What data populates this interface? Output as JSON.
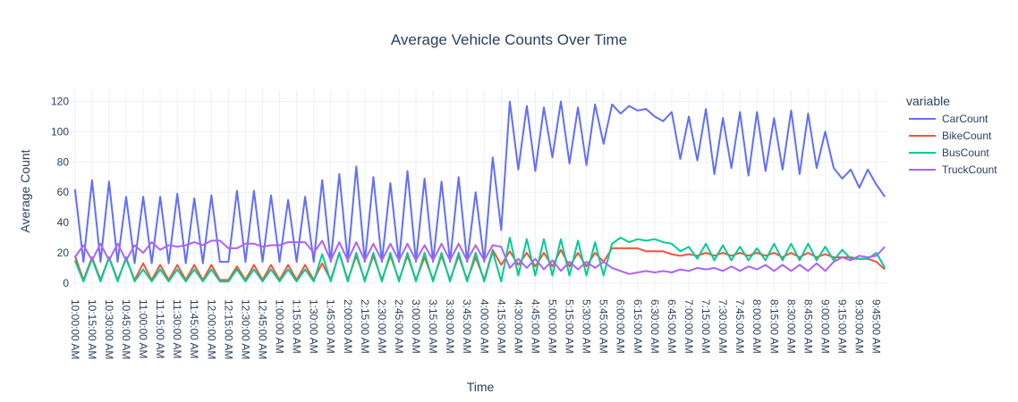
{
  "chart_data": {
    "type": "line",
    "title": "Average Vehicle Counts Over Time",
    "xlabel": "Time",
    "ylabel": "Average Count",
    "ylim": [
      -6,
      128
    ],
    "yticks": [
      0,
      20,
      40,
      60,
      80,
      100,
      120
    ],
    "grid": true,
    "legend_title": "variable",
    "legend_position": "right",
    "xtick_labels": [
      "10:00:00 AM",
      "10:15:00 AM",
      "10:30:00 AM",
      "10:45:00 AM",
      "11:00:00 AM",
      "11:15:00 AM",
      "11:30:00 AM",
      "11:45:00 AM",
      "12:00:00 AM",
      "12:15:00 AM",
      "12:30:00 AM",
      "12:45:00 AM",
      "1:00:00 AM",
      "1:15:00 AM",
      "1:30:00 AM",
      "1:45:00 AM",
      "2:00:00 AM",
      "2:15:00 AM",
      "2:30:00 AM",
      "2:45:00 AM",
      "3:00:00 AM",
      "3:15:00 AM",
      "3:30:00 AM",
      "3:45:00 AM",
      "4:00:00 AM",
      "4:15:00 AM",
      "4:30:00 AM",
      "4:45:00 AM",
      "5:00:00 AM",
      "5:15:00 AM",
      "5:30:00 AM",
      "5:45:00 AM",
      "6:00:00 AM",
      "6:15:00 AM",
      "6:30:00 AM",
      "6:45:00 AM",
      "7:00:00 AM",
      "7:15:00 AM",
      "7:30:00 AM",
      "7:45:00 AM",
      "8:00:00 AM",
      "8:15:00 AM",
      "8:30:00 AM",
      "8:45:00 AM",
      "9:00:00 AM",
      "9:15:00 AM",
      "9:30:00 AM",
      "9:45:00 AM"
    ],
    "x": [
      "10:00:00 AM",
      "10:00:00 PM",
      "10:15:00 AM",
      "10:15:00 PM",
      "10:30:00 AM",
      "10:30:00 PM",
      "10:45:00 AM",
      "10:45:00 PM",
      "11:00:00 AM",
      "11:00:00 PM",
      "11:15:00 AM",
      "11:15:00 PM",
      "11:30:00 AM",
      "11:30:00 PM",
      "11:45:00 AM",
      "11:45:00 PM",
      "12:00:00 AM",
      "12:00:00 PM",
      "12:15:00 AM",
      "12:15:00 PM",
      "12:30:00 AM",
      "12:30:00 PM",
      "12:45:00 AM",
      "12:45:00 PM",
      "1:00:00 AM",
      "1:00:00 PM",
      "1:15:00 AM",
      "1:15:00 PM",
      "1:30:00 AM",
      "1:30:00 PM",
      "1:45:00 AM",
      "1:45:00 PM",
      "2:00:00 AM",
      "2:00:00 PM",
      "2:15:00 AM",
      "2:15:00 PM",
      "2:30:00 AM",
      "2:30:00 PM",
      "2:45:00 AM",
      "2:45:00 PM",
      "3:00:00 AM",
      "3:00:00 PM",
      "3:15:00 AM",
      "3:15:00 PM",
      "3:30:00 AM",
      "3:30:00 PM",
      "3:45:00 AM",
      "3:45:00 PM",
      "4:00:00 AM",
      "4:00:00 PM",
      "4:15:00 AM",
      "4:15:00 PM",
      "4:30:00 AM",
      "4:30:00 PM",
      "4:45:00 AM",
      "4:45:00 PM",
      "5:00:00 AM",
      "5:00:00 PM",
      "5:15:00 AM",
      "5:15:00 PM",
      "5:30:00 AM",
      "5:30:00 PM",
      "5:45:00 AM",
      "5:45:00 PM",
      "6:00:00 AM",
      "6:00:00 PM",
      "6:15:00 AM",
      "6:15:00 PM",
      "6:30:00 AM",
      "6:30:00 PM",
      "6:45:00 AM",
      "6:45:00 PM",
      "7:00:00 AM",
      "7:00:00 PM",
      "7:15:00 AM",
      "7:15:00 PM",
      "7:30:00 AM",
      "7:30:00 PM",
      "7:45:00 AM",
      "7:45:00 PM",
      "8:00:00 AM",
      "8:00:00 PM",
      "8:15:00 AM",
      "8:15:00 PM",
      "8:30:00 AM",
      "8:30:00 PM",
      "8:45:00 AM",
      "8:45:00 PM",
      "9:00:00 AM",
      "9:00:00 PM",
      "9:15:00 AM",
      "9:15:00 PM",
      "9:30:00 AM",
      "9:30:00 PM",
      "9:45:00 AM",
      "9:45:00 PM"
    ],
    "series": [
      {
        "name": "CarCount",
        "color": "#636efa",
        "values": [
          62,
          14,
          68,
          14,
          67,
          14,
          57,
          13,
          57,
          13,
          57,
          13,
          59,
          13,
          56,
          13,
          58,
          14,
          14,
          61,
          14,
          61,
          14,
          58,
          14,
          55,
          14,
          57,
          14,
          68,
          14,
          72,
          14,
          77,
          14,
          70,
          14,
          66,
          14,
          74,
          14,
          69,
          14,
          67,
          14,
          70,
          14,
          60,
          14,
          83,
          35,
          120,
          75,
          117,
          74,
          116,
          83,
          120,
          79,
          116,
          78,
          118,
          92,
          118,
          112,
          117,
          114,
          115,
          110,
          107,
          113,
          82,
          110,
          81,
          115,
          72,
          109,
          76,
          113,
          71,
          113,
          74,
          109,
          75,
          114,
          72,
          112,
          76,
          100,
          76,
          69,
          75,
          63,
          75,
          65,
          57
        ]
      },
      {
        "name": "BikeCount",
        "color": "#ef553b",
        "values": [
          18,
          2,
          17,
          2,
          17,
          2,
          16,
          2,
          13,
          2,
          12,
          2,
          12,
          2,
          12,
          2,
          12,
          2,
          2,
          11,
          2,
          12,
          2,
          12,
          2,
          12,
          2,
          12,
          2,
          13,
          2,
          20,
          2,
          18,
          2,
          18,
          2,
          18,
          2,
          18,
          2,
          17,
          2,
          18,
          2,
          18,
          2,
          17,
          2,
          22,
          12,
          21,
          12,
          20,
          11,
          20,
          11,
          22,
          11,
          20,
          11,
          20,
          14,
          23,
          23,
          23,
          23,
          21,
          21,
          21,
          19,
          18,
          19,
          18,
          20,
          18,
          20,
          18,
          20,
          18,
          20,
          18,
          20,
          17,
          20,
          17,
          20,
          17,
          19,
          17,
          17,
          17,
          16,
          16,
          14,
          9
        ]
      },
      {
        "name": "BusCount",
        "color": "#00cc96",
        "values": [
          15,
          1,
          16,
          1,
          17,
          1,
          17,
          1,
          9,
          1,
          9,
          1,
          9,
          1,
          9,
          1,
          9,
          1,
          1,
          9,
          1,
          9,
          1,
          9,
          1,
          9,
          1,
          9,
          1,
          19,
          1,
          20,
          1,
          20,
          1,
          20,
          1,
          20,
          1,
          20,
          1,
          20,
          1,
          20,
          1,
          20,
          1,
          20,
          1,
          21,
          1,
          30,
          5,
          29,
          5,
          29,
          5,
          29,
          5,
          28,
          5,
          27,
          5,
          26,
          30,
          27,
          29,
          28,
          29,
          27,
          26,
          21,
          24,
          16,
          26,
          15,
          25,
          15,
          24,
          15,
          23,
          15,
          26,
          15,
          26,
          15,
          26,
          15,
          24,
          15,
          22,
          16,
          16,
          16,
          20,
          10
        ]
      },
      {
        "name": "TruckCount",
        "color": "#ab63fa",
        "values": [
          17,
          25,
          15,
          26,
          15,
          26,
          15,
          25,
          20,
          27,
          22,
          25,
          24,
          25,
          27,
          25,
          28,
          28,
          23,
          23,
          26,
          26,
          24,
          25,
          25,
          27,
          27,
          27,
          20,
          28,
          15,
          27,
          15,
          27,
          15,
          26,
          15,
          26,
          15,
          26,
          15,
          25,
          15,
          26,
          15,
          26,
          15,
          25,
          15,
          25,
          24,
          10,
          16,
          10,
          16,
          9,
          15,
          8,
          14,
          9,
          14,
          10,
          14,
          10,
          8,
          6,
          7,
          8,
          7,
          8,
          7,
          9,
          8,
          10,
          9,
          10,
          8,
          11,
          8,
          11,
          9,
          12,
          8,
          12,
          8,
          12,
          8,
          13,
          8,
          14,
          17,
          15,
          18,
          17,
          18,
          24
        ]
      }
    ]
  }
}
